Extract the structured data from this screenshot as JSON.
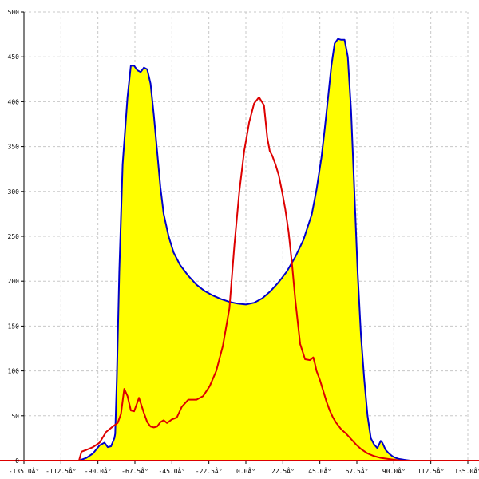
{
  "chart_data": {
    "type": "area",
    "title": "",
    "xlabel": "",
    "ylabel": "",
    "xlim": [
      -135,
      135
    ],
    "ylim": [
      0,
      500
    ],
    "grid": true,
    "x_ticks": [
      -135,
      -112.5,
      -90,
      -67.5,
      -45,
      -22.5,
      0,
      22.5,
      45,
      67.5,
      90,
      112.5,
      135
    ],
    "x_tick_labels": [
      "-135.0Â°",
      "-112.5Â°",
      "-90.0Â°",
      "-67.5Â°",
      "-45.0Â°",
      "-22.5Â°",
      "0.0Â°",
      "22.5Â°",
      "45.0Â°",
      "67.5Â°",
      "90.0Â°",
      "112.5Â°",
      "135.0Â°"
    ],
    "y_ticks": [
      0,
      50,
      100,
      150,
      200,
      250,
      300,
      350,
      400,
      450,
      500
    ],
    "y_tick_labels": [
      "0",
      "50",
      "100",
      "150",
      "200",
      "250",
      "300",
      "350",
      "400",
      "450",
      "500"
    ],
    "colors": {
      "fill": "#ffff00",
      "blue": "#0000cc",
      "red": "#dd0000",
      "axis": "#dd0000"
    },
    "series": [
      {
        "color": "#0000cc",
        "filled": true,
        "x": [
          -101.5,
          -97,
          -93,
          -89,
          -86,
          -84,
          -82,
          -80,
          -79.5,
          -78.5,
          -77,
          -75,
          -72,
          -70,
          -68,
          -66,
          -64,
          -62,
          -60,
          -58,
          -56,
          -54,
          -52,
          -50,
          -47,
          -44,
          -40,
          -35,
          -30,
          -25,
          -20,
          -15,
          -10,
          -5,
          0,
          5,
          10,
          15,
          20,
          25,
          30,
          35,
          40,
          43,
          46,
          48,
          50,
          52,
          54,
          56,
          58,
          60,
          62,
          64,
          66,
          68,
          70,
          72,
          74,
          76,
          78,
          80,
          82,
          83,
          85,
          87,
          89,
          91,
          93,
          96,
          100,
          103
        ],
        "y": [
          0,
          3,
          8,
          17,
          20,
          15,
          16,
          25,
          30,
          90,
          210,
          330,
          405,
          440,
          440,
          435,
          433,
          438,
          436,
          420,
          385,
          345,
          305,
          275,
          250,
          232,
          218,
          206,
          196,
          189,
          184,
          180,
          177,
          175,
          174,
          176,
          181,
          189,
          199,
          211,
          227,
          246,
          274,
          302,
          338,
          370,
          405,
          440,
          465,
          470,
          469,
          469,
          450,
          390,
          300,
          210,
          140,
          90,
          50,
          25,
          18,
          14,
          22,
          20,
          12,
          8,
          5,
          3,
          2,
          1,
          0,
          0
        ]
      },
      {
        "color": "#dd0000",
        "filled": false,
        "x": [
          -101.5,
          -100,
          -97,
          -93,
          -89,
          -85,
          -81,
          -78,
          -76,
          -74,
          -72,
          -70,
          -68,
          -65,
          -62,
          -60,
          -58,
          -56,
          -54,
          -52,
          -50,
          -48,
          -45,
          -42,
          -39,
          -35,
          -30,
          -26,
          -22,
          -18,
          -14,
          -10,
          -7,
          -4,
          -1,
          2,
          5,
          8,
          11,
          13,
          14.5,
          16,
          18,
          20,
          22,
          24,
          26,
          28,
          30,
          33,
          36,
          39,
          41,
          42,
          43,
          45,
          47,
          49,
          51,
          53,
          55,
          58,
          61,
          64,
          67,
          70,
          74,
          78,
          82,
          86,
          90,
          95,
          100,
          103
        ],
        "y": [
          0,
          10,
          12,
          15,
          20,
          32,
          38,
          42,
          52,
          80,
          72,
          56,
          55,
          70,
          53,
          43,
          38,
          37,
          38,
          43,
          45,
          42,
          46,
          48,
          60,
          68,
          68,
          72,
          83,
          100,
          128,
          170,
          240,
          300,
          345,
          377,
          398,
          405,
          396,
          360,
          345,
          340,
          330,
          318,
          300,
          280,
          255,
          220,
          180,
          130,
          113,
          112,
          115,
          108,
          100,
          90,
          78,
          66,
          56,
          48,
          42,
          35,
          30,
          24,
          18,
          13,
          8,
          5,
          3,
          2,
          1,
          0,
          0,
          0
        ]
      }
    ]
  }
}
